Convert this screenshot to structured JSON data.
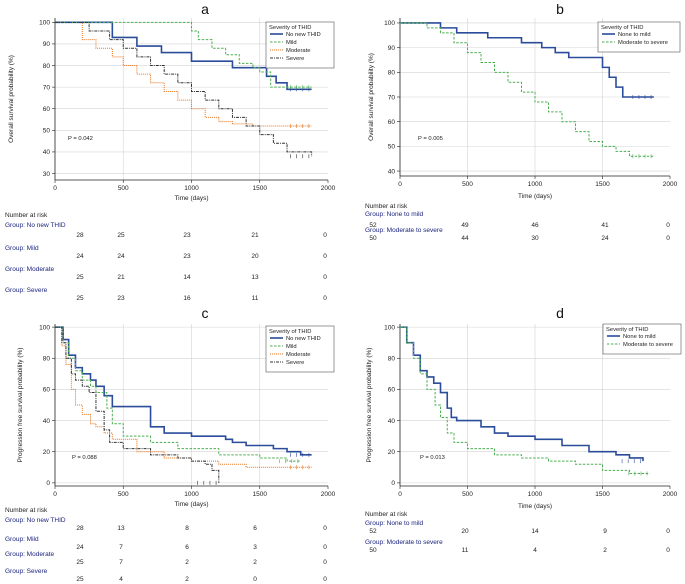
{
  "chart_data": [
    {
      "type": "line",
      "panel_label": "a",
      "ylabel": "Overall survival probability  (%)",
      "xlabel": "Time (days)",
      "xlim": [
        0,
        2000
      ],
      "ylim": [
        27,
        102
      ],
      "xticks": [
        0,
        500,
        1000,
        1500,
        2000
      ],
      "yticks": [
        30,
        40,
        50,
        60,
        70,
        80,
        90,
        100
      ],
      "p_value": "P = 0.042",
      "legend_title": "Severity of THID",
      "series": [
        {
          "name": "No new THID",
          "color": "#2b4c9b",
          "dash": "",
          "width": 1.6,
          "x": [
            0,
            420,
            600,
            780,
            1000,
            1300,
            1550,
            1620,
            1700,
            1880
          ],
          "y": [
            100,
            93,
            89,
            86,
            82,
            79,
            75,
            72,
            69,
            69
          ]
        },
        {
          "name": "Mild",
          "color": "#4caf50",
          "dash": "2.5,1.5",
          "width": 1,
          "x": [
            0,
            900,
            1000,
            1050,
            1150,
            1250,
            1350,
            1450,
            1500,
            1580,
            1880
          ],
          "y": [
            100,
            100,
            96,
            92,
            88,
            85,
            81,
            79,
            77,
            70,
            70
          ]
        },
        {
          "name": "Moderate",
          "color": "#e8721c",
          "dash": "1,1",
          "width": 1,
          "x": [
            0,
            200,
            300,
            420,
            500,
            600,
            700,
            800,
            900,
            1000,
            1100,
            1200,
            1300,
            1450,
            1600,
            1880
          ],
          "y": [
            100,
            92,
            88,
            84,
            80,
            76,
            72,
            68,
            64,
            60,
            56,
            54,
            53,
            52,
            52,
            52
          ]
        },
        {
          "name": "Severe",
          "color": "#333333",
          "dash": "3,1,1,1",
          "width": 1,
          "x": [
            0,
            250,
            400,
            500,
            600,
            700,
            800,
            900,
            1000,
            1100,
            1200,
            1300,
            1400,
            1500,
            1600,
            1700,
            1880
          ],
          "y": [
            100,
            96,
            92,
            88,
            84,
            80,
            76,
            72,
            68,
            64,
            60,
            56,
            52,
            48,
            44,
            40,
            38
          ]
        }
      ],
      "risk_table": {
        "title": "Number at risk",
        "times": [
          0,
          500,
          1000,
          1500,
          2000
        ],
        "groups": [
          {
            "label": "Group: No new THID",
            "counts": [
              "28",
              "25",
              "23",
              "21",
              "0"
            ]
          },
          {
            "label": "Group: Mild",
            "counts": [
              "24",
              "24",
              "23",
              "20",
              "0"
            ]
          },
          {
            "label": "Group: Moderate",
            "counts": [
              "25",
              "21",
              "14",
              "13",
              "0"
            ]
          },
          {
            "label": "Group: Severe",
            "counts": [
              "25",
              "23",
              "16",
              "11",
              "0"
            ]
          }
        ]
      }
    },
    {
      "type": "line",
      "panel_label": "b",
      "ylabel": "Overall survival probability  (%)",
      "xlabel": "Time (days)",
      "xlim": [
        0,
        2000
      ],
      "ylim": [
        38,
        102
      ],
      "xticks": [
        0,
        500,
        1000,
        1500,
        2000
      ],
      "yticks": [
        40,
        50,
        60,
        70,
        80,
        90,
        100
      ],
      "p_value": "P = 0.005",
      "legend_title": "Severity of THID",
      "series": [
        {
          "name": "None to mild",
          "color": "#2b4c9b",
          "dash": "",
          "width": 1.6,
          "x": [
            0,
            300,
            420,
            650,
            900,
            1050,
            1150,
            1250,
            1500,
            1550,
            1600,
            1650,
            1880
          ],
          "y": [
            100,
            98,
            96,
            94,
            92,
            90,
            88,
            86,
            82,
            78,
            74,
            70,
            70
          ]
        },
        {
          "name": "Moderate to severe",
          "color": "#4caf50",
          "dash": "2.5,1.5",
          "width": 1,
          "x": [
            0,
            200,
            300,
            400,
            500,
            600,
            700,
            800,
            900,
            1000,
            1100,
            1200,
            1300,
            1400,
            1500,
            1600,
            1700,
            1880
          ],
          "y": [
            100,
            98,
            96,
            92,
            88,
            84,
            80,
            76,
            72,
            68,
            64,
            60,
            56,
            52,
            50,
            48,
            46,
            46
          ]
        }
      ],
      "risk_table": {
        "title": "Number at risk",
        "times": [
          0,
          500,
          1000,
          1500,
          2000
        ],
        "groups": [
          {
            "label": "Group: None to mild",
            "counts": [
              "52",
              "49",
              "46",
              "41",
              "0"
            ]
          },
          {
            "label": "Group: Moderate to severe",
            "counts": [
              "50",
              "44",
              "30",
              "24",
              "0"
            ]
          }
        ]
      }
    },
    {
      "type": "line",
      "panel_label": "c",
      "ylabel": "Progression free  survival probability  (%)",
      "xlabel": "Time (days)",
      "xlim": [
        0,
        2000
      ],
      "ylim": [
        -2,
        102
      ],
      "xticks": [
        0,
        500,
        1000,
        1500,
        2000
      ],
      "yticks": [
        0,
        20,
        40,
        60,
        80,
        100
      ],
      "p_value": "P = 0.088",
      "legend_title": "Severity of THID",
      "series": [
        {
          "name": "No new THID",
          "color": "#2b4c9b",
          "dash": "",
          "width": 1.6,
          "x": [
            0,
            60,
            100,
            150,
            200,
            260,
            300,
            360,
            420,
            500,
            700,
            800,
            1000,
            1250,
            1300,
            1400,
            1600,
            1700,
            1800,
            1880
          ],
          "y": [
            100,
            92,
            82,
            74,
            70,
            66,
            62,
            56,
            49,
            49,
            36,
            32,
            30,
            28,
            26,
            24,
            22,
            20,
            18,
            18
          ]
        },
        {
          "name": "Mild",
          "color": "#4caf50",
          "dash": "2.5,1.5",
          "width": 1,
          "x": [
            0,
            60,
            100,
            150,
            200,
            260,
            300,
            380,
            420,
            500,
            700,
            900,
            1200,
            1500,
            1700,
            1800
          ],
          "y": [
            100,
            90,
            80,
            72,
            66,
            62,
            58,
            48,
            38,
            30,
            26,
            22,
            18,
            16,
            14,
            14
          ]
        },
        {
          "name": "Moderate",
          "color": "#e8721c",
          "dash": "1,1",
          "width": 1,
          "x": [
            0,
            50,
            80,
            120,
            150,
            200,
            260,
            300,
            360,
            420,
            600,
            800,
            1000,
            1200,
            1400,
            1880
          ],
          "y": [
            100,
            88,
            76,
            60,
            50,
            44,
            38,
            36,
            32,
            28,
            20,
            16,
            14,
            12,
            10,
            10
          ]
        },
        {
          "name": "Severe",
          "color": "#333333",
          "dash": "3,1,1,1",
          "width": 1,
          "x": [
            0,
            50,
            80,
            120,
            150,
            200,
            250,
            300,
            360,
            400,
            500,
            700,
            900,
            1000,
            1100,
            1150,
            1200
          ],
          "y": [
            100,
            90,
            80,
            70,
            66,
            62,
            58,
            46,
            34,
            26,
            22,
            18,
            16,
            14,
            12,
            8,
            0
          ]
        }
      ],
      "risk_table": {
        "title": "Number at risk",
        "times": [
          0,
          500,
          1000,
          1500,
          2000
        ],
        "groups": [
          {
            "label": "Group: No new THID",
            "counts": [
              "28",
              "13",
              "8",
              "6",
              "0"
            ]
          },
          {
            "label": "Group: Mild",
            "counts": [
              "24",
              "7",
              "6",
              "3",
              "0"
            ]
          },
          {
            "label": "Group: Moderate",
            "counts": [
              "25",
              "7",
              "2",
              "2",
              "0"
            ]
          },
          {
            "label": "Group: Severe",
            "counts": [
              "25",
              "4",
              "2",
              "0",
              "0"
            ]
          }
        ]
      }
    },
    {
      "type": "line",
      "panel_label": "d",
      "ylabel": "Progression free  survival probability  (%)",
      "xlabel": "Time (days)",
      "xlim": [
        0,
        2000
      ],
      "ylim": [
        -2,
        102
      ],
      "xticks": [
        0,
        500,
        1000,
        1500,
        2000
      ],
      "yticks": [
        0,
        20,
        40,
        60,
        80,
        100
      ],
      "p_value": "P = 0.013",
      "legend_title": "Severity of THID",
      "series": [
        {
          "name": "None to mild",
          "color": "#2b4c9b",
          "dash": "",
          "width": 1.6,
          "x": [
            0,
            50,
            100,
            150,
            200,
            250,
            300,
            350,
            380,
            420,
            600,
            700,
            800,
            1000,
            1200,
            1400,
            1600,
            1700,
            1800
          ],
          "y": [
            100,
            90,
            82,
            72,
            68,
            64,
            58,
            48,
            42,
            40,
            36,
            32,
            30,
            28,
            24,
            20,
            18,
            16,
            14
          ]
        },
        {
          "name": "Moderate to severe",
          "color": "#4caf50",
          "dash": "2.5,1.5",
          "width": 1,
          "x": [
            0,
            50,
            100,
            150,
            200,
            260,
            300,
            350,
            400,
            500,
            700,
            900,
            1100,
            1300,
            1500,
            1700,
            1850
          ],
          "y": [
            100,
            90,
            80,
            70,
            60,
            50,
            42,
            32,
            26,
            22,
            18,
            16,
            14,
            12,
            8,
            6,
            6
          ]
        }
      ],
      "risk_table": {
        "title": "Number at risk",
        "times": [
          0,
          500,
          1000,
          1500,
          2000
        ],
        "groups": [
          {
            "label": "Group: None to mild",
            "counts": [
              "52",
              "20",
              "14",
              "9",
              "0"
            ]
          },
          {
            "label": "Group: Moderate to severe",
            "counts": [
              "50",
              "11",
              "4",
              "2",
              "0"
            ]
          }
        ]
      }
    }
  ]
}
